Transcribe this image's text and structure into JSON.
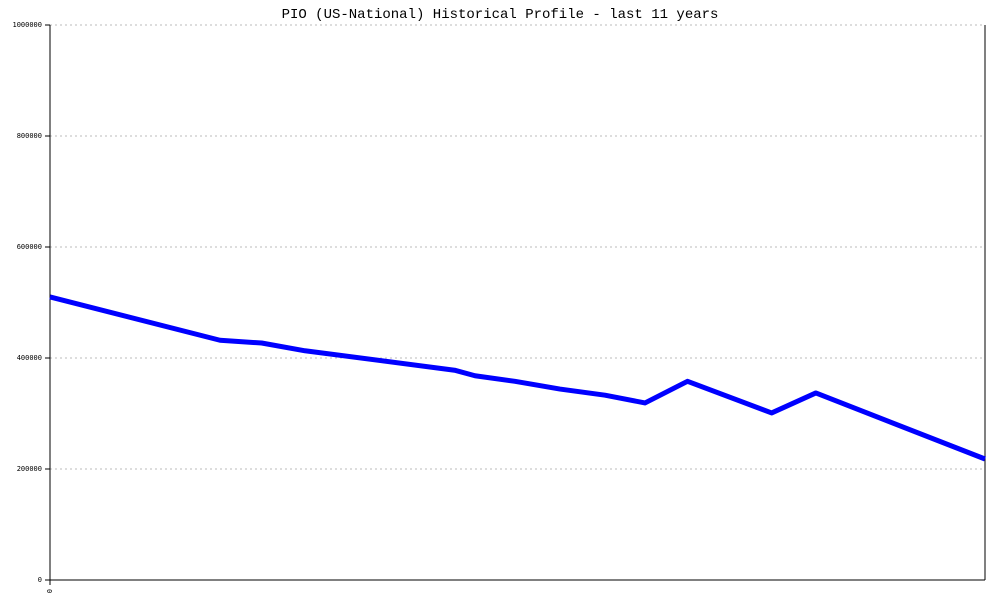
{
  "chart_data": {
    "type": "line",
    "title": "PIO (US-National) Historical Profile - last 11 years",
    "xlabel": "",
    "ylabel": "",
    "ylim": [
      0,
      1000000
    ],
    "xlim": [
      0,
      11
    ],
    "x_tick_labels": [
      "0"
    ],
    "y_ticks": [
      0,
      200000,
      400000,
      600000,
      800000,
      1000000
    ],
    "y_tick_labels": [
      "0",
      "200000",
      "400000",
      "600000",
      "800000",
      "1000000"
    ],
    "grid": "horizontal dotted",
    "line_color": "#0000ff",
    "series": [
      {
        "x": [
          0,
          2.0,
          2.49,
          3.0,
          4.76,
          5.0,
          5.47,
          6.0,
          6.53,
          7.0,
          7.5,
          8.49,
          9.01,
          11
        ],
        "values": [
          510000,
          432000,
          427000,
          413000,
          378000,
          368000,
          358000,
          344000,
          333000,
          319000,
          358000,
          301000,
          337000,
          218000
        ]
      }
    ]
  }
}
